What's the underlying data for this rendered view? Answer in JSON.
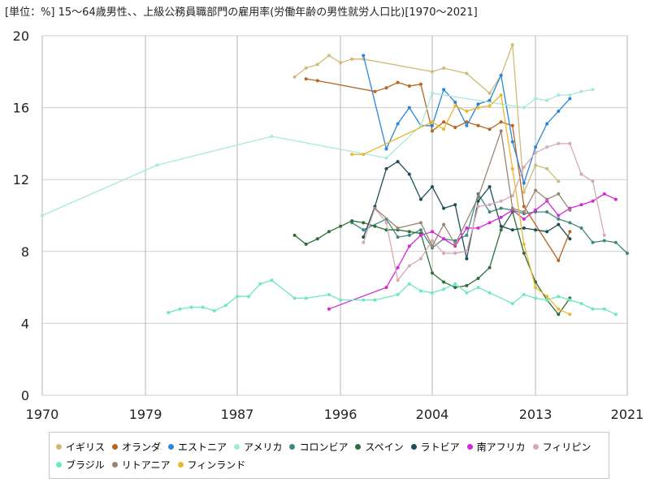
{
  "title": "[単位：%] 15～64歳男性、、上級公務員職部門の雇用率(労働年齢の男性就労人口比)[1970～2021]",
  "chart_data": {
    "type": "line",
    "xlim": [
      1970,
      2021
    ],
    "ylim": [
      0,
      20
    ],
    "xticks": [
      "1970",
      "1979",
      "1987",
      "1996",
      "2004",
      "2013",
      "2021"
    ],
    "yticks": [
      "0",
      "4",
      "8",
      "12",
      "16",
      "20"
    ],
    "series": [
      {
        "name": "イギリス",
        "color": "#d4b87a",
        "points": [
          [
            1992,
            17.7
          ],
          [
            1993,
            18.2
          ],
          [
            1994,
            18.4
          ],
          [
            1995,
            18.9
          ],
          [
            1996,
            18.5
          ],
          [
            1997,
            18.7
          ],
          [
            1998,
            18.7
          ],
          [
            2004,
            18.0
          ],
          [
            2005,
            18.2
          ],
          [
            2007,
            17.9
          ],
          [
            2009,
            16.8
          ],
          [
            2010,
            17.8
          ],
          [
            2011,
            19.5
          ],
          [
            2012,
            11.3
          ],
          [
            2013,
            12.8
          ],
          [
            2014,
            12.6
          ],
          [
            2015,
            11.9
          ]
        ]
      },
      {
        "name": "オランダ",
        "color": "#b8651e",
        "points": [
          [
            1993,
            17.6
          ],
          [
            1994,
            17.5
          ],
          [
            1999,
            16.9
          ],
          [
            2000,
            17.1
          ],
          [
            2001,
            17.4
          ],
          [
            2002,
            17.2
          ],
          [
            2003,
            17.3
          ],
          [
            2004,
            14.7
          ],
          [
            2005,
            15.2
          ],
          [
            2006,
            14.9
          ],
          [
            2007,
            15.2
          ],
          [
            2008,
            15.0
          ],
          [
            2009,
            14.8
          ],
          [
            2010,
            15.2
          ],
          [
            2011,
            15.0
          ],
          [
            2012,
            10.5
          ],
          [
            2015,
            7.5
          ],
          [
            2016,
            9.1
          ]
        ]
      },
      {
        "name": "エストニア",
        "color": "#2a86d8",
        "points": [
          [
            1998,
            18.9
          ],
          [
            2000,
            13.7
          ],
          [
            2001,
            15.1
          ],
          [
            2002,
            16.0
          ],
          [
            2003,
            15.0
          ],
          [
            2004,
            15.0
          ],
          [
            2005,
            17.0
          ],
          [
            2006,
            16.3
          ],
          [
            2007,
            15.0
          ],
          [
            2008,
            16.2
          ],
          [
            2009,
            16.4
          ],
          [
            2010,
            17.8
          ],
          [
            2011,
            14.1
          ],
          [
            2012,
            11.8
          ],
          [
            2013,
            13.8
          ],
          [
            2014,
            15.1
          ],
          [
            2015,
            15.8
          ],
          [
            2016,
            16.5
          ]
        ]
      },
      {
        "name": "アメリカ",
        "color": "#a8e8dc",
        "points": [
          [
            1970,
            10.0
          ],
          [
            1980,
            12.8
          ],
          [
            1990,
            14.4
          ],
          [
            2000,
            13.2
          ],
          [
            2003,
            15.0
          ],
          [
            2004,
            16.8
          ],
          [
            2012,
            16.0
          ],
          [
            2013,
            16.5
          ],
          [
            2014,
            16.4
          ],
          [
            2015,
            16.7
          ],
          [
            2016,
            16.7
          ],
          [
            2017,
            16.9
          ],
          [
            2018,
            17.0
          ]
        ]
      },
      {
        "name": "コロンビア",
        "color": "#3e8a80",
        "points": [
          [
            1997,
            9.6
          ],
          [
            1998,
            9.2
          ],
          [
            2000,
            9.8
          ],
          [
            2001,
            8.8
          ],
          [
            2002,
            8.9
          ],
          [
            2003,
            9.2
          ],
          [
            2004,
            8.2
          ],
          [
            2005,
            8.7
          ],
          [
            2006,
            8.6
          ],
          [
            2007,
            8.9
          ],
          [
            2008,
            11.2
          ],
          [
            2009,
            10.2
          ],
          [
            2010,
            10.4
          ],
          [
            2011,
            10.3
          ],
          [
            2012,
            10.1
          ],
          [
            2013,
            10.2
          ],
          [
            2014,
            10.2
          ],
          [
            2015,
            9.8
          ],
          [
            2016,
            9.6
          ],
          [
            2017,
            9.3
          ],
          [
            2018,
            8.5
          ],
          [
            2019,
            8.6
          ],
          [
            2020,
            8.5
          ],
          [
            2021,
            7.9
          ]
        ]
      },
      {
        "name": "スペイン",
        "color": "#2e6e38",
        "points": [
          [
            1992,
            8.9
          ],
          [
            1993,
            8.4
          ],
          [
            1994,
            8.7
          ],
          [
            1995,
            9.1
          ],
          [
            1996,
            9.4
          ],
          [
            1997,
            9.7
          ],
          [
            1998,
            9.6
          ],
          [
            1999,
            9.4
          ],
          [
            2000,
            9.2
          ],
          [
            2001,
            9.2
          ],
          [
            2002,
            9.1
          ],
          [
            2003,
            9.0
          ],
          [
            2004,
            6.8
          ],
          [
            2005,
            6.3
          ],
          [
            2006,
            6.0
          ],
          [
            2007,
            6.1
          ],
          [
            2008,
            6.5
          ],
          [
            2009,
            7.1
          ],
          [
            2010,
            9.2
          ],
          [
            2011,
            10.2
          ],
          [
            2012,
            7.9
          ],
          [
            2013,
            6.3
          ],
          [
            2014,
            5.3
          ],
          [
            2015,
            4.5
          ],
          [
            2016,
            5.4
          ]
        ]
      },
      {
        "name": "ラトビア",
        "color": "#1e4d58",
        "points": [
          [
            1998,
            8.8
          ],
          [
            1999,
            10.5
          ],
          [
            2000,
            12.6
          ],
          [
            2001,
            13.0
          ],
          [
            2002,
            12.3
          ],
          [
            2003,
            10.9
          ],
          [
            2004,
            11.6
          ],
          [
            2005,
            10.4
          ],
          [
            2006,
            10.6
          ],
          [
            2007,
            7.6
          ],
          [
            2008,
            10.8
          ],
          [
            2009,
            11.6
          ],
          [
            2010,
            9.4
          ],
          [
            2011,
            9.2
          ],
          [
            2012,
            9.3
          ],
          [
            2013,
            9.2
          ],
          [
            2014,
            9.1
          ],
          [
            2015,
            9.5
          ],
          [
            2016,
            8.7
          ]
        ]
      },
      {
        "name": "南アフリカ",
        "color": "#d42ad4",
        "points": [
          [
            1995,
            4.8
          ],
          [
            2000,
            6.0
          ],
          [
            2001,
            7.1
          ],
          [
            2002,
            8.3
          ],
          [
            2003,
            8.9
          ],
          [
            2004,
            9.1
          ],
          [
            2005,
            8.7
          ],
          [
            2006,
            8.3
          ],
          [
            2007,
            9.3
          ],
          [
            2008,
            9.3
          ],
          [
            2009,
            9.6
          ],
          [
            2010,
            9.9
          ],
          [
            2011,
            10.3
          ],
          [
            2012,
            9.8
          ],
          [
            2013,
            10.3
          ],
          [
            2014,
            10.8
          ],
          [
            2015,
            10.0
          ],
          [
            2016,
            10.4
          ],
          [
            2017,
            10.6
          ],
          [
            2018,
            10.8
          ],
          [
            2019,
            11.2
          ],
          [
            2020,
            10.9
          ]
        ]
      },
      {
        "name": "フィリピン",
        "color": "#d4aab4",
        "points": [
          [
            1998,
            8.5
          ],
          [
            1999,
            10.4
          ],
          [
            2000,
            9.6
          ],
          [
            2001,
            6.4
          ],
          [
            2002,
            7.2
          ],
          [
            2003,
            7.6
          ],
          [
            2004,
            8.6
          ],
          [
            2005,
            7.9
          ],
          [
            2006,
            7.9
          ],
          [
            2007,
            8.0
          ],
          [
            2008,
            10.5
          ],
          [
            2009,
            10.6
          ],
          [
            2010,
            10.8
          ],
          [
            2011,
            11.1
          ],
          [
            2012,
            12.7
          ],
          [
            2013,
            13.5
          ],
          [
            2014,
            13.8
          ],
          [
            2015,
            14.0
          ],
          [
            2016,
            14.0
          ],
          [
            2017,
            12.3
          ],
          [
            2018,
            11.9
          ],
          [
            2019,
            8.9
          ]
        ]
      },
      {
        "name": "ブラジル",
        "color": "#6ee8c0",
        "points": [
          [
            1981,
            4.6
          ],
          [
            1982,
            4.8
          ],
          [
            1983,
            4.9
          ],
          [
            1984,
            4.9
          ],
          [
            1985,
            4.7
          ],
          [
            1986,
            5.0
          ],
          [
            1987,
            5.5
          ],
          [
            1988,
            5.5
          ],
          [
            1989,
            6.2
          ],
          [
            1990,
            6.4
          ],
          [
            1992,
            5.4
          ],
          [
            1993,
            5.4
          ],
          [
            1995,
            5.6
          ],
          [
            1996,
            5.3
          ],
          [
            1998,
            5.3
          ],
          [
            1999,
            5.3
          ],
          [
            2001,
            5.6
          ],
          [
            2002,
            6.2
          ],
          [
            2003,
            5.8
          ],
          [
            2004,
            5.7
          ],
          [
            2005,
            5.9
          ],
          [
            2006,
            6.2
          ],
          [
            2007,
            5.7
          ],
          [
            2008,
            6.0
          ],
          [
            2009,
            5.7
          ],
          [
            2011,
            5.1
          ],
          [
            2012,
            5.6
          ],
          [
            2013,
            5.4
          ],
          [
            2014,
            5.3
          ],
          [
            2015,
            5.5
          ],
          [
            2016,
            5.3
          ],
          [
            2017,
            5.1
          ],
          [
            2018,
            4.8
          ],
          [
            2019,
            4.8
          ],
          [
            2020,
            4.5
          ]
        ]
      },
      {
        "name": "リトアニア",
        "color": "#9c8474",
        "points": [
          [
            1999,
            10.4
          ],
          [
            2001,
            9.3
          ],
          [
            2003,
            9.6
          ],
          [
            2004,
            8.3
          ],
          [
            2005,
            9.5
          ],
          [
            2006,
            8.4
          ],
          [
            2008,
            11.0
          ],
          [
            2010,
            14.7
          ],
          [
            2011,
            10.4
          ],
          [
            2012,
            10.2
          ],
          [
            2013,
            11.4
          ],
          [
            2014,
            10.9
          ],
          [
            2015,
            11.2
          ],
          [
            2016,
            10.3
          ]
        ]
      },
      {
        "name": "フィンランド",
        "color": "#e8b830",
        "points": [
          [
            1997,
            13.4
          ],
          [
            1998,
            13.4
          ],
          [
            2004,
            15.2
          ],
          [
            2005,
            14.8
          ],
          [
            2006,
            16.1
          ],
          [
            2007,
            15.8
          ],
          [
            2008,
            16.0
          ],
          [
            2009,
            16.1
          ],
          [
            2010,
            16.7
          ],
          [
            2011,
            12.6
          ],
          [
            2012,
            8.4
          ],
          [
            2013,
            6.0
          ],
          [
            2014,
            5.5
          ],
          [
            2015,
            4.8
          ],
          [
            2016,
            4.5
          ]
        ]
      }
    ]
  }
}
